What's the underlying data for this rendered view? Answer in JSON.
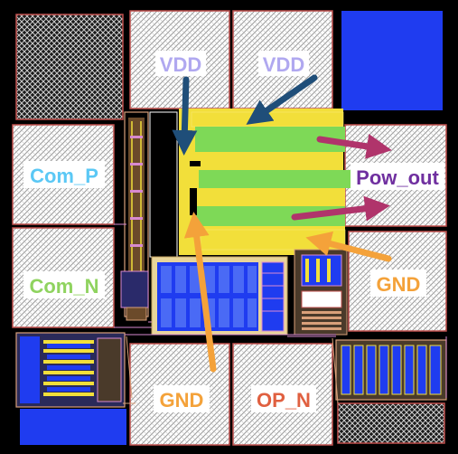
{
  "labels": {
    "vdd_left": "VDD",
    "vdd_right": "VDD",
    "com_p": "Com_P",
    "com_n": "Com_N",
    "pow_out": "Pow_out",
    "gnd_right": "GND",
    "gnd_bottom": "GND",
    "op_n": "OP_N"
  },
  "colors": {
    "background": "#000000",
    "pad_border": "#c0504d",
    "metal_blue": "#1f3cf0",
    "metal_yellow": "#f2df3a",
    "metal_green": "#7ed957",
    "arrow_navy": "#1f4e79",
    "arrow_magenta": "#b0346b",
    "arrow_orange": "#f4a23a",
    "text_vdd": "#b0a8f0",
    "text_com_p": "#5bc8f5",
    "text_com_n": "#8fd35f",
    "text_pow_out": "#7030a0",
    "text_gnd": "#f4a23a",
    "text_op_n": "#e06040"
  }
}
